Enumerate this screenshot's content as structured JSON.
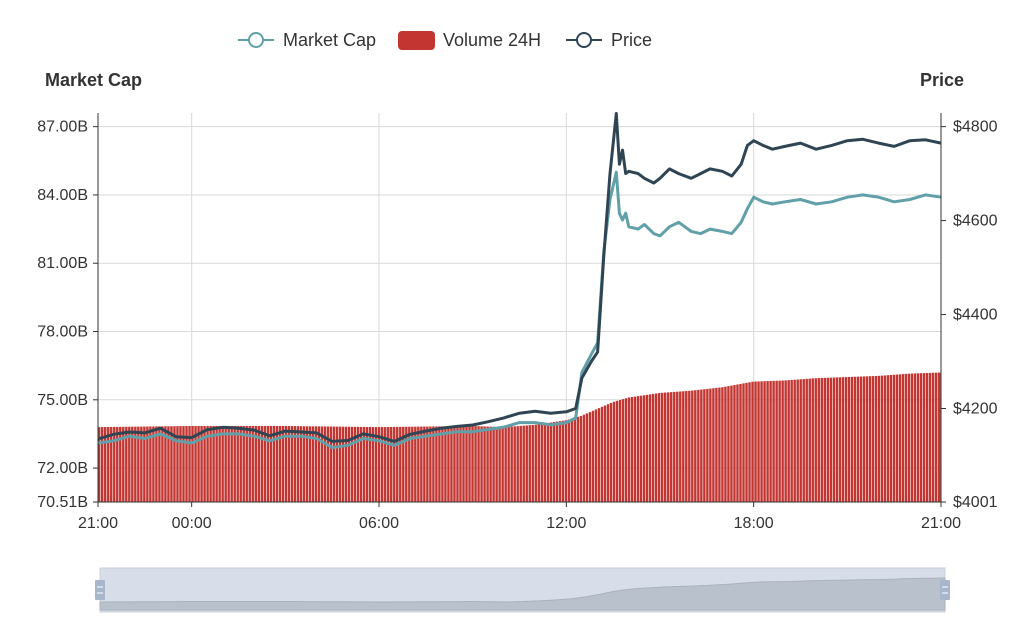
{
  "chart_data": {
    "type": "bar+line",
    "legend": [
      {
        "label": "Market Cap",
        "color": "#61a0a8",
        "icon": "line-circle-icon"
      },
      {
        "label": "Volume 24H",
        "color": "#c23531",
        "icon": "rounded-rect-icon"
      },
      {
        "label": "Price",
        "color": "#2f4554",
        "icon": "line-circle-icon"
      }
    ],
    "left_axis": {
      "title": "Market Cap",
      "tick_labels": [
        "70.51B",
        "72.00B",
        "75.00B",
        "78.00B",
        "81.00B",
        "84.00B",
        "87.00B"
      ],
      "ticks": [
        70.51,
        72,
        75,
        78,
        81,
        84,
        87
      ],
      "range": [
        70.51,
        87.6
      ]
    },
    "right_axis": {
      "title": "Price",
      "tick_labels": [
        "$4001",
        "$4200",
        "$4400",
        "$4600",
        "$4800"
      ],
      "ticks": [
        4001,
        4200,
        4400,
        4600,
        4800
      ],
      "range": [
        4001,
        4829
      ]
    },
    "x_axis": {
      "tick_labels": [
        "21:00",
        "00:00",
        "06:00",
        "12:00",
        "18:00",
        "21:00"
      ],
      "tick_hours": [
        -3,
        0,
        6,
        12,
        18,
        24
      ],
      "range_hours": [
        -3,
        24
      ]
    },
    "grid": true,
    "data_zoom": {
      "start": 0,
      "end": 100
    },
    "series": [
      {
        "name": "Market Cap",
        "axis": "left",
        "style": "line",
        "color": "#61a0a8",
        "points": [
          [
            -3,
            73.1
          ],
          [
            -2.5,
            73.2
          ],
          [
            -2,
            73.4
          ],
          [
            -1.5,
            73.3
          ],
          [
            -1,
            73.5
          ],
          [
            -0.5,
            73.2
          ],
          [
            0,
            73.1
          ],
          [
            0.5,
            73.4
          ],
          [
            1,
            73.5
          ],
          [
            1.5,
            73.5
          ],
          [
            2,
            73.4
          ],
          [
            2.5,
            73.2
          ],
          [
            3,
            73.4
          ],
          [
            3.5,
            73.4
          ],
          [
            4,
            73.3
          ],
          [
            4.5,
            72.9
          ],
          [
            5,
            73.0
          ],
          [
            5.5,
            73.3
          ],
          [
            6,
            73.2
          ],
          [
            6.5,
            73.0
          ],
          [
            7,
            73.3
          ],
          [
            7.5,
            73.4
          ],
          [
            8,
            73.5
          ],
          [
            8.5,
            73.6
          ],
          [
            9,
            73.6
          ],
          [
            9.5,
            73.7
          ],
          [
            10,
            73.8
          ],
          [
            10.5,
            74.0
          ],
          [
            11,
            74.0
          ],
          [
            11.5,
            73.9
          ],
          [
            12,
            74.0
          ],
          [
            12.3,
            74.2
          ],
          [
            12.5,
            76.2
          ],
          [
            12.8,
            77.0
          ],
          [
            13.0,
            77.5
          ],
          [
            13.2,
            81.5
          ],
          [
            13.4,
            83.8
          ],
          [
            13.6,
            85.0
          ],
          [
            13.7,
            83.2
          ],
          [
            13.8,
            82.9
          ],
          [
            13.9,
            83.2
          ],
          [
            14.0,
            82.6
          ],
          [
            14.3,
            82.5
          ],
          [
            14.5,
            82.7
          ],
          [
            14.8,
            82.3
          ],
          [
            15.0,
            82.2
          ],
          [
            15.3,
            82.6
          ],
          [
            15.6,
            82.8
          ],
          [
            16.0,
            82.4
          ],
          [
            16.3,
            82.3
          ],
          [
            16.6,
            82.5
          ],
          [
            17.0,
            82.4
          ],
          [
            17.3,
            82.3
          ],
          [
            17.6,
            82.8
          ],
          [
            17.8,
            83.4
          ],
          [
            18.0,
            83.9
          ],
          [
            18.3,
            83.7
          ],
          [
            18.6,
            83.6
          ],
          [
            19.0,
            83.7
          ],
          [
            19.5,
            83.8
          ],
          [
            20.0,
            83.6
          ],
          [
            20.5,
            83.7
          ],
          [
            21.0,
            83.9
          ],
          [
            21.5,
            84.0
          ],
          [
            22.0,
            83.9
          ],
          [
            22.5,
            83.7
          ],
          [
            23.0,
            83.8
          ],
          [
            23.5,
            84.0
          ],
          [
            24.0,
            83.9
          ]
        ]
      },
      {
        "name": "Price",
        "axis": "right",
        "style": "line",
        "color": "#2f4554",
        "points": [
          [
            -3,
            4135
          ],
          [
            -2.5,
            4145
          ],
          [
            -2,
            4150
          ],
          [
            -1.5,
            4148
          ],
          [
            -1,
            4158
          ],
          [
            -0.5,
            4140
          ],
          [
            0,
            4138
          ],
          [
            0.5,
            4155
          ],
          [
            1,
            4160
          ],
          [
            1.5,
            4158
          ],
          [
            2,
            4154
          ],
          [
            2.5,
            4142
          ],
          [
            3,
            4152
          ],
          [
            3.5,
            4150
          ],
          [
            4,
            4148
          ],
          [
            4.5,
            4130
          ],
          [
            5,
            4132
          ],
          [
            5.5,
            4146
          ],
          [
            6,
            4140
          ],
          [
            6.5,
            4130
          ],
          [
            7,
            4145
          ],
          [
            7.5,
            4152
          ],
          [
            8,
            4158
          ],
          [
            8.5,
            4162
          ],
          [
            9,
            4165
          ],
          [
            9.5,
            4172
          ],
          [
            10,
            4180
          ],
          [
            10.5,
            4190
          ],
          [
            11,
            4194
          ],
          [
            11.5,
            4190
          ],
          [
            12,
            4193
          ],
          [
            12.3,
            4200
          ],
          [
            12.5,
            4265
          ],
          [
            12.8,
            4300
          ],
          [
            13.0,
            4320
          ],
          [
            13.2,
            4525
          ],
          [
            13.4,
            4700
          ],
          [
            13.6,
            4828
          ],
          [
            13.7,
            4720
          ],
          [
            13.8,
            4750
          ],
          [
            13.9,
            4700
          ],
          [
            14.0,
            4705
          ],
          [
            14.3,
            4700
          ],
          [
            14.5,
            4690
          ],
          [
            14.8,
            4680
          ],
          [
            15.0,
            4690
          ],
          [
            15.3,
            4710
          ],
          [
            15.6,
            4700
          ],
          [
            16.0,
            4690
          ],
          [
            16.3,
            4700
          ],
          [
            16.6,
            4710
          ],
          [
            17.0,
            4705
          ],
          [
            17.3,
            4695
          ],
          [
            17.6,
            4720
          ],
          [
            17.8,
            4760
          ],
          [
            18.0,
            4770
          ],
          [
            18.3,
            4760
          ],
          [
            18.6,
            4752
          ],
          [
            19.0,
            4758
          ],
          [
            19.5,
            4765
          ],
          [
            20.0,
            4752
          ],
          [
            20.5,
            4760
          ],
          [
            21.0,
            4770
          ],
          [
            21.5,
            4773
          ],
          [
            22.0,
            4765
          ],
          [
            22.5,
            4758
          ],
          [
            23.0,
            4770
          ],
          [
            23.5,
            4772
          ],
          [
            24.0,
            4765
          ]
        ]
      },
      {
        "name": "Volume 24H",
        "axis": "left",
        "style": "bar",
        "color": "#c23531",
        "points": [
          [
            -3,
            73.8
          ],
          [
            0,
            73.85
          ],
          [
            3,
            73.85
          ],
          [
            6,
            73.8
          ],
          [
            9,
            73.85
          ],
          [
            10,
            73.8
          ],
          [
            11,
            73.9
          ],
          [
            12,
            74.1
          ],
          [
            12.5,
            74.3
          ],
          [
            13,
            74.6
          ],
          [
            13.5,
            74.9
          ],
          [
            14,
            75.1
          ],
          [
            14.5,
            75.2
          ],
          [
            15,
            75.3
          ],
          [
            16,
            75.4
          ],
          [
            17,
            75.55
          ],
          [
            18,
            75.8
          ],
          [
            19,
            75.85
          ],
          [
            20,
            75.95
          ],
          [
            21,
            76.0
          ],
          [
            22,
            76.05
          ],
          [
            23,
            76.15
          ],
          [
            24,
            76.2
          ]
        ]
      }
    ]
  }
}
